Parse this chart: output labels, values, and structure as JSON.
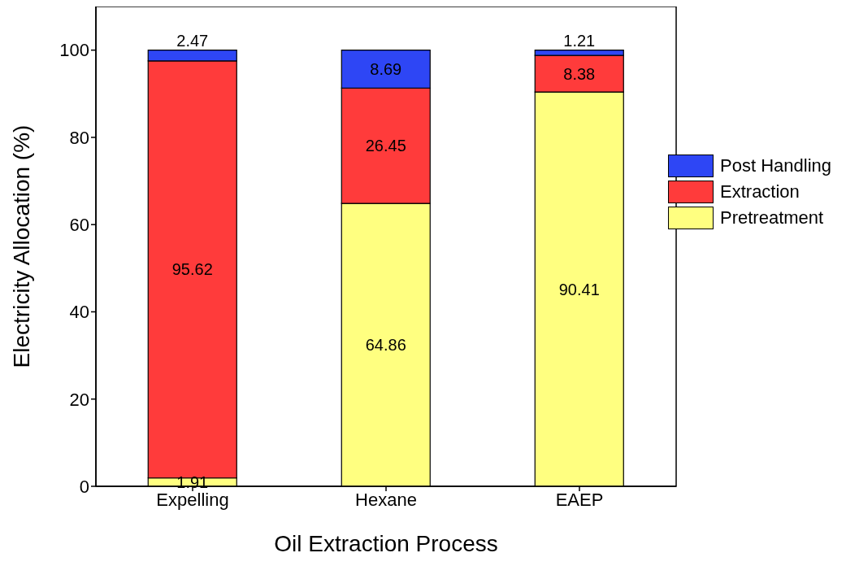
{
  "chart_data": {
    "type": "bar",
    "stacked": true,
    "xlabel": "Oil Extraction Process",
    "ylabel": "Electricity Allocation (%)",
    "categories": [
      "Expelling",
      "Hexane",
      "EAEP"
    ],
    "series": [
      {
        "name": "Pretreatment",
        "color": "#ffff80",
        "values": [
          1.91,
          64.86,
          90.41
        ]
      },
      {
        "name": "Extraction",
        "color": "#ff3b3b",
        "values": [
          95.62,
          26.45,
          8.38
        ]
      },
      {
        "name": "Post Handling",
        "color": "#2e46f5",
        "values": [
          2.47,
          8.69,
          1.21
        ]
      }
    ],
    "ylim": [
      0,
      110
    ],
    "yticks": [
      0,
      20,
      40,
      60,
      80,
      100
    ],
    "grid": false,
    "legend": "right",
    "data_labels": true
  }
}
